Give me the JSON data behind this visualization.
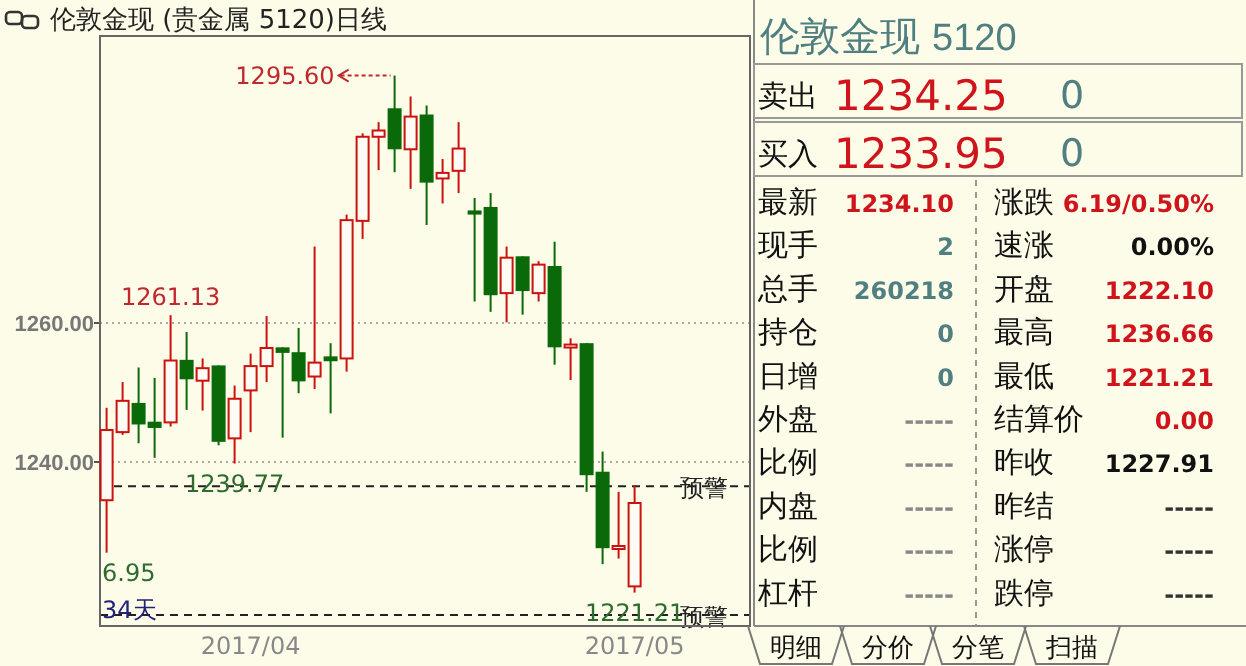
{
  "chart_data": [
    {
      "type": "candlestick",
      "title": "伦敦金现 (贵金属 5120)日线",
      "categories": [
        null,
        null,
        null,
        null,
        null,
        null,
        null,
        null,
        null,
        "2017/04",
        null,
        null,
        null,
        null,
        null,
        null,
        null,
        null,
        null,
        null,
        null,
        null,
        null,
        null,
        null,
        null,
        null,
        null,
        null,
        null,
        null,
        null,
        null,
        "2017/05"
      ],
      "ohlc": [
        [
          1234.5,
          1247.8,
          1226.95,
          1244.6
        ],
        [
          1244.3,
          1251.5,
          1243.9,
          1248.8
        ],
        [
          1248.5,
          1253.6,
          1242.7,
          1245.4
        ],
        [
          1245.8,
          1252.1,
          1240.6,
          1244.9
        ],
        [
          1245.7,
          1261.13,
          1245.1,
          1254.6
        ],
        [
          1254.7,
          1258.7,
          1247.5,
          1251.9
        ],
        [
          1251.7,
          1254.9,
          1247.4,
          1253.5
        ],
        [
          1253.9,
          1253.9,
          1242.4,
          1242.9
        ],
        [
          1243.4,
          1251.0,
          1239.77,
          1249.1
        ],
        [
          1250.3,
          1255.6,
          1244.3,
          1253.8
        ],
        [
          1253.8,
          1261.0,
          1251.5,
          1256.4
        ],
        [
          1256.5,
          1256.5,
          1243.5,
          1255.7
        ],
        [
          1255.8,
          1259.3,
          1249.9,
          1251.6
        ],
        [
          1252.3,
          1271.0,
          1250.5,
          1254.3
        ],
        [
          1255.2,
          1257.1,
          1247.0,
          1254.5
        ],
        [
          1254.9,
          1275.6,
          1253.0,
          1274.8
        ],
        [
          1274.7,
          1287.3,
          1272.1,
          1286.8
        ],
        [
          1286.8,
          1288.9,
          1282.0,
          1287.7
        ],
        [
          1290.9,
          1295.6,
          1281.7,
          1285.0
        ],
        [
          1285.0,
          1292.6,
          1279.3,
          1289.7
        ],
        [
          1290.0,
          1291.3,
          1274.1,
          1280.2
        ],
        [
          1280.8,
          1283.6,
          1277.2,
          1281.6
        ],
        [
          1281.9,
          1288.9,
          1278.7,
          1285.1
        ],
        [
          1276.2,
          1278.0,
          1263.1,
          1275.6
        ],
        [
          1276.7,
          1278.7,
          1261.6,
          1264.0
        ],
        [
          1264.3,
          1271.0,
          1260.1,
          1269.4
        ],
        [
          1269.6,
          1269.6,
          1261.2,
          1264.6
        ],
        [
          1264.3,
          1268.9,
          1263.1,
          1268.4
        ],
        [
          1268.2,
          1271.7,
          1254.0,
          1256.5
        ],
        [
          1256.5,
          1257.8,
          1251.8,
          1256.9
        ],
        [
          1257.1,
          1257.1,
          1235.7,
          1238.1
        ],
        [
          1238.6,
          1241.5,
          1225.3,
          1227.6
        ],
        [
          1227.7,
          1235.7,
          1226.1,
          1227.91
        ],
        [
          1222.1,
          1236.66,
          1221.21,
          1234.1
        ]
      ],
      "ylim": [
        1216.4,
        1301.3
      ],
      "yticks": [
        {
          "value": 1260,
          "label": "1260.00"
        },
        {
          "value": 1240,
          "label": "1240.00"
        }
      ],
      "grid": "y",
      "ref_lines": [
        {
          "axis": "y",
          "value": 1236.5,
          "label": "预警",
          "line_style": "dashed"
        },
        {
          "axis": "y",
          "value": 1218,
          "label": "预警",
          "line_style": "dashed"
        }
      ],
      "annotations": [
        "1295.60",
        {
          "text": "1261.13",
          "y": 1261.13
        },
        {
          "text": "1239.77",
          "y": 1239.77
        },
        "6.95",
        {
          "text": "1221.21",
          "y": 1221.21
        },
        "34天"
      ]
    },
    {
      "type": "other",
      "annotations": [
        "伦敦金现",
        "5120",
        "卖出",
        "1234.25",
        "0",
        "买入",
        "1233.95",
        "0",
        "最新",
        "1234.10",
        "涨跌",
        "6.19/0.50%",
        "现手",
        "2",
        "速涨",
        "0.00%",
        "总手",
        "260218",
        "开盘",
        "1222.10",
        "持仓",
        "0",
        "最高",
        "1236.66",
        "日增",
        "0",
        "最低",
        "1221.21",
        "外盘",
        "-----",
        "结算价",
        "0.00",
        "比例",
        "-----",
        "昨收",
        "1227.91",
        "内盘",
        "-----",
        "昨结",
        "-----",
        "比例",
        "-----",
        "涨停",
        "-----",
        "杠杆",
        "-----",
        "跌停",
        "-----",
        "明细",
        "分价",
        "分笔",
        "扫描"
      ]
    }
  ]
}
